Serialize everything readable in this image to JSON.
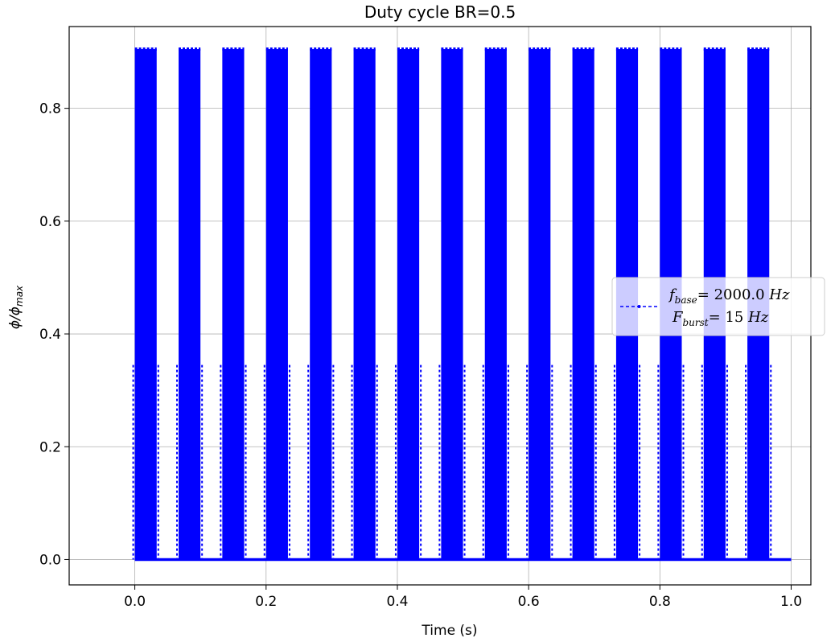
{
  "chart_data": {
    "type": "line",
    "title": "Duty cycle BR=0.5",
    "xlabel": "Time (s)",
    "ylabel_main": "ϕ/ϕ",
    "ylabel_sub": "max",
    "xlim": [
      -0.1,
      1.03
    ],
    "ylim": [
      -0.045,
      0.945
    ],
    "x_ticks": [
      0.0,
      0.2,
      0.4,
      0.6,
      0.8,
      1.0
    ],
    "x_tick_labels": [
      "0.0",
      "0.2",
      "0.4",
      "0.6",
      "0.8",
      "1.0"
    ],
    "y_ticks": [
      0.0,
      0.2,
      0.4,
      0.6,
      0.8
    ],
    "y_tick_labels": [
      "0.0",
      "0.2",
      "0.4",
      "0.6",
      "0.8"
    ],
    "grid": true,
    "legend_position": "center-right",
    "series": [
      {
        "color": "#0000ff",
        "line_style": "dashed",
        "marker": "dot",
        "peak_value": 0.905,
        "baseline_value": 0.0,
        "burst_width_s": 0.0333,
        "burst_starts_s": [
          0.0,
          0.0667,
          0.1333,
          0.2,
          0.2667,
          0.3333,
          0.4,
          0.4667,
          0.5333,
          0.6,
          0.6667,
          0.7333,
          0.8,
          0.8667,
          0.9333
        ],
        "x_end": 1.0
      }
    ],
    "legend": {
      "line1_sym": "f",
      "line1_sub": "base",
      "line1_val": "=  2000.0 ",
      "line1_unit": "Hz",
      "line2_sym": "F",
      "line2_sub": "burst",
      "line2_val": "= 15 ",
      "line2_unit": "Hz"
    }
  }
}
